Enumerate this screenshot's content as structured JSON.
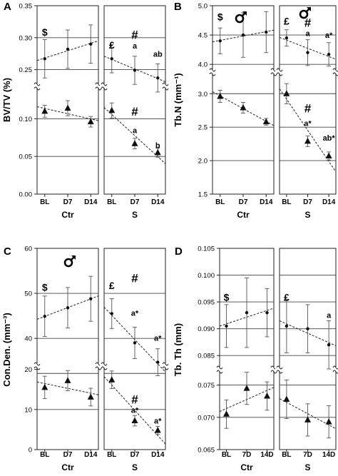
{
  "chart_data": [
    {
      "type": "scatter",
      "panel_label": "A",
      "ylabel": "BV/TV (%)",
      "male_symbol": false,
      "groups": [
        "Ctr",
        "S"
      ],
      "x_ticks": [
        "BL",
        "D7",
        "D14"
      ],
      "segments": [
        {
          "range": [
            0.225,
            0.35
          ],
          "ticks": [
            0.25,
            0.3,
            0.35
          ],
          "tick_labels": [
            "0.25",
            "0.30",
            "0.35"
          ],
          "gridlines": [
            0.25,
            0.3
          ]
        },
        {
          "range": [
            0.0,
            0.125
          ],
          "ticks": [
            0.0,
            0.05,
            0.1
          ],
          "tick_labels": [
            "0.00",
            "0.05",
            "0.10"
          ],
          "gridlines": [
            0.05,
            0.1
          ]
        }
      ],
      "series": [
        {
          "marker": "circle",
          "group": "Ctr",
          "values": [
            0.267,
            0.282,
            0.29
          ],
          "err": [
            0.03,
            0.03,
            0.03
          ]
        },
        {
          "marker": "circle",
          "group": "S",
          "values": [
            0.267,
            0.249,
            0.237
          ],
          "err": [
            0.022,
            0.022,
            0.022
          ]
        },
        {
          "marker": "triangle",
          "group": "Ctr",
          "values": [
            0.11,
            0.114,
            0.096
          ],
          "err": [
            0.008,
            0.01,
            0.007
          ]
        },
        {
          "marker": "triangle",
          "group": "S",
          "values": [
            0.111,
            0.067,
            0.055
          ],
          "err": [
            0.01,
            0.007,
            0.006
          ]
        }
      ],
      "annotations": [
        {
          "text": "$",
          "group": "Ctr",
          "index": 0,
          "value": 0.303,
          "size": 14
        },
        {
          "text": "£",
          "group": "S",
          "index": 0,
          "value": 0.283,
          "size": 14
        },
        {
          "text": "#",
          "group": "S",
          "index": 1,
          "value": 0.298,
          "size": 17
        },
        {
          "text": "a",
          "group": "S",
          "index": 1,
          "value": 0.283,
          "size": 11
        },
        {
          "text": "ab",
          "group": "S",
          "index": 2,
          "value": 0.27,
          "size": 11
        },
        {
          "text": "#",
          "group": "S",
          "index": 1,
          "value": 0.104,
          "size": 17
        },
        {
          "text": "a",
          "group": "S",
          "index": 1,
          "value": 0.081,
          "size": 11
        },
        {
          "text": "b",
          "group": "S",
          "index": 2,
          "value": 0.061,
          "size": 11
        }
      ]
    },
    {
      "type": "scatter",
      "panel_label": "B",
      "ylabel": "Tb.N (mm⁻¹)",
      "male_symbol": true,
      "groups": [
        "Ctr",
        "S"
      ],
      "x_ticks": [
        "BL",
        "D7",
        "D14"
      ],
      "segments": [
        {
          "range": [
            3.88,
            5.0
          ],
          "ticks": [
            4.0,
            4.5,
            5.0
          ],
          "tick_labels": [
            "4.0",
            "4.5",
            "5.0"
          ],
          "gridlines": [
            4.0,
            4.5
          ]
        },
        {
          "range": [
            1.5,
            3.12
          ],
          "ticks": [
            1.5,
            2.0,
            2.5,
            3.0
          ],
          "tick_labels": [
            "1.5",
            "2.0",
            "2.5",
            "3.0"
          ],
          "gridlines": [
            2.0,
            2.5,
            3.0
          ]
        }
      ],
      "series": [
        {
          "marker": "circle",
          "group": "Ctr",
          "values": [
            4.4,
            4.5,
            4.55
          ],
          "err": [
            0.22,
            0.38,
            0.35
          ]
        },
        {
          "marker": "circle",
          "group": "S",
          "values": [
            4.45,
            4.2,
            4.17
          ],
          "err": [
            0.14,
            0.22,
            0.2
          ]
        },
        {
          "marker": "triangle",
          "group": "Ctr",
          "values": [
            2.96,
            2.79,
            2.58
          ],
          "err": [
            0.09,
            0.08,
            0.05
          ]
        },
        {
          "marker": "triangle",
          "group": "S",
          "values": [
            3.0,
            2.29,
            2.07
          ],
          "err": [
            0.15,
            0.08,
            0.06
          ]
        }
      ],
      "annotations": [
        {
          "text": "$",
          "group": "Ctr",
          "index": 0,
          "value": 4.75,
          "size": 14
        },
        {
          "text": "£",
          "group": "S",
          "index": 0,
          "value": 4.68,
          "size": 14
        },
        {
          "text": "#",
          "group": "S",
          "index": 1,
          "value": 4.64,
          "size": 17
        },
        {
          "text": "a",
          "group": "S",
          "index": 1,
          "value": 4.48,
          "size": 11
        },
        {
          "text": "a*",
          "group": "S",
          "index": 2,
          "value": 4.45,
          "size": 11
        },
        {
          "text": "#",
          "group": "S",
          "index": 1,
          "value": 2.72,
          "size": 17
        },
        {
          "text": "a*",
          "group": "S",
          "index": 1,
          "value": 2.52,
          "size": 11
        },
        {
          "text": "ab*",
          "group": "S",
          "index": 2,
          "value": 2.3,
          "size": 11
        }
      ]
    },
    {
      "type": "scatter",
      "panel_label": "C",
      "ylabel": "Con.Den. (mm⁻³)",
      "male_symbol": true,
      "groups": [
        "Ctr",
        "S"
      ],
      "x_ticks": [
        "BL",
        "D7",
        "D14"
      ],
      "segments": [
        {
          "range": [
            34,
            60
          ],
          "ticks": [
            40,
            50,
            60
          ],
          "tick_labels": [
            "40",
            "50",
            "60"
          ],
          "gridlines": [
            40,
            50
          ]
        },
        {
          "range": [
            0,
            21
          ],
          "ticks": [
            0,
            10,
            20
          ],
          "tick_labels": [
            "0",
            "10",
            "20"
          ],
          "gridlines": [
            10,
            19
          ]
        }
      ],
      "series": [
        {
          "marker": "circle",
          "group": "Ctr",
          "values": [
            44.9,
            46.8,
            48.8
          ],
          "err": [
            4.5,
            4.5,
            5.0
          ]
        },
        {
          "marker": "circle",
          "group": "S",
          "values": [
            45.5,
            39.0,
            34.7
          ],
          "err": [
            3.3,
            3.5,
            3.0
          ]
        },
        {
          "marker": "triangle",
          "group": "Ctr",
          "values": [
            15.5,
            17.2,
            13.1
          ],
          "err": [
            2.8,
            2.5,
            2.2
          ]
        },
        {
          "marker": "triangle",
          "group": "S",
          "values": [
            17.4,
            7.2,
            4.8
          ],
          "err": [
            2.2,
            1.3,
            1.0
          ]
        }
      ],
      "annotations": [
        {
          "text": "$",
          "group": "Ctr",
          "index": 0,
          "value": 50.6,
          "size": 14
        },
        {
          "text": "£",
          "group": "S",
          "index": 0,
          "value": 51.0,
          "size": 14
        },
        {
          "text": "#",
          "group": "S",
          "index": 1,
          "value": 52.5,
          "size": 17
        },
        {
          "text": "a*",
          "group": "S",
          "index": 1,
          "value": 45.0,
          "size": 11
        },
        {
          "text": "a*",
          "group": "S",
          "index": 2,
          "value": 39.5,
          "size": 11
        },
        {
          "text": "#",
          "group": "S",
          "index": 1,
          "value": 11.5,
          "size": 17
        },
        {
          "text": "a*",
          "group": "S",
          "index": 1,
          "value": 9.2,
          "size": 11
        },
        {
          "text": "a*",
          "group": "S",
          "index": 2,
          "value": 6.5,
          "size": 11
        }
      ]
    },
    {
      "type": "scatter",
      "panel_label": "D",
      "ylabel": "Tb. Th (mm)",
      "male_symbol": false,
      "groups": [
        "Ctr",
        "S"
      ],
      "x_ticks": [
        "BL",
        "7D",
        "14D"
      ],
      "segments": [
        {
          "range": [
            0.0825,
            0.105
          ],
          "ticks": [
            0.085,
            0.09,
            0.095,
            0.1,
            0.105
          ],
          "tick_labels": [
            "0.085",
            "0.090",
            "0.095",
            "0.100",
            "0.105"
          ],
          "gridlines": [
            0.085,
            0.09,
            0.095,
            0.1
          ]
        },
        {
          "range": [
            0.065,
            0.0775
          ],
          "ticks": [
            0.065,
            0.07,
            0.075
          ],
          "tick_labels": [
            "0.065",
            "0.070",
            "0.075"
          ],
          "gridlines": [
            0.07,
            0.075
          ]
        }
      ],
      "series": [
        {
          "marker": "circle",
          "group": "Ctr",
          "values": [
            0.0905,
            0.093,
            0.093
          ],
          "err": [
            0.004,
            0.0065,
            0.0045
          ]
        },
        {
          "marker": "circle",
          "group": "S",
          "values": [
            0.0905,
            0.09,
            0.087
          ],
          "err": [
            0.005,
            0.0045,
            0.0045
          ]
        },
        {
          "marker": "triangle",
          "group": "Ctr",
          "values": [
            0.0705,
            0.0745,
            0.0733
          ],
          "err": [
            0.0022,
            0.0025,
            0.0022
          ]
        },
        {
          "marker": "triangle",
          "group": "S",
          "values": [
            0.0728,
            0.0696,
            0.0693
          ],
          "err": [
            0.003,
            0.0025,
            0.0025
          ]
        }
      ],
      "annotations": [
        {
          "text": "$",
          "group": "Ctr",
          "index": 0,
          "value": 0.0952,
          "size": 14
        },
        {
          "text": "£",
          "group": "S",
          "index": 0,
          "value": 0.0952,
          "size": 14
        },
        {
          "text": "a",
          "group": "S",
          "index": 2,
          "value": 0.092,
          "size": 11
        }
      ]
    }
  ]
}
